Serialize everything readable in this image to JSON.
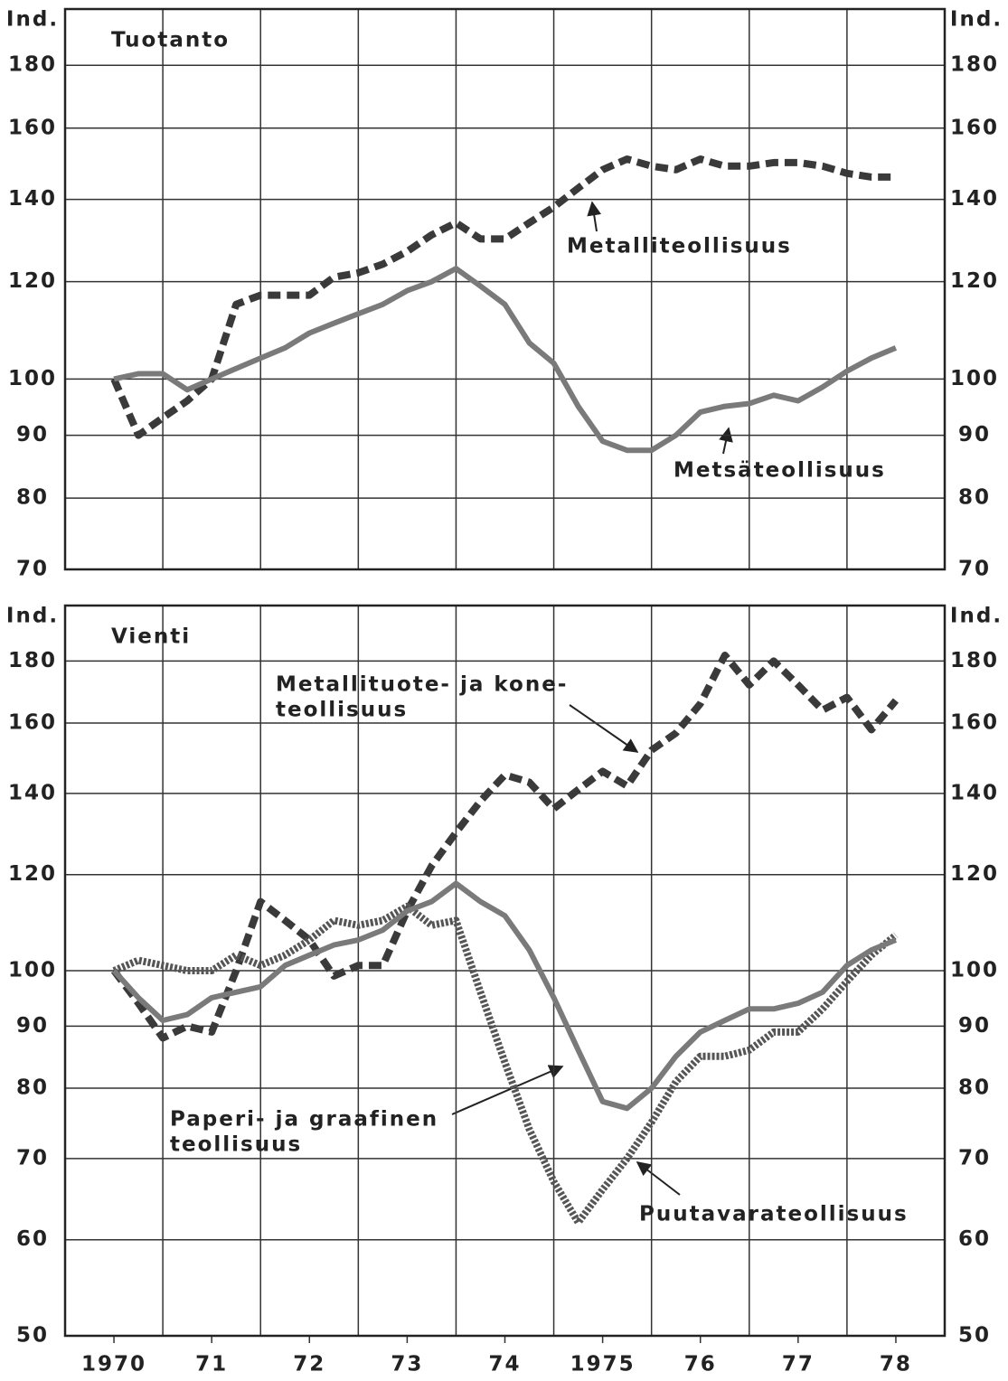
{
  "chart_data": [
    {
      "type": "line",
      "title": "Tuotanto",
      "y_label": "Ind.",
      "log_y": true,
      "xlim": [
        1969.5,
        1978.5
      ],
      "ylim": [
        70,
        200
      ],
      "xgrid": [
        1970.5,
        1971.5,
        1972.5,
        1973.5,
        1974.5,
        1975.5,
        1976.5,
        1977.5
      ],
      "yticks": [
        70,
        80,
        90,
        100,
        120,
        140,
        160,
        180
      ],
      "x": [
        1970,
        1970.25,
        1970.5,
        1970.75,
        1971,
        1971.25,
        1971.5,
        1971.75,
        1972,
        1972.25,
        1972.5,
        1972.75,
        1973,
        1973.25,
        1973.5,
        1973.75,
        1974,
        1974.25,
        1974.5,
        1974.75,
        1975,
        1975.25,
        1975.5,
        1975.75,
        1976,
        1976.25,
        1976.5,
        1976.75,
        1977,
        1977.25,
        1977.5,
        1977.75,
        1978
      ],
      "series": [
        {
          "label": [
            "Metalliteollisuus"
          ],
          "color": "#3a3a3a",
          "style": "dashed",
          "values": [
            100,
            90,
            93,
            96,
            100,
            115,
            117,
            117,
            117,
            121,
            122,
            124,
            127,
            131,
            134,
            130,
            130,
            134,
            138,
            143,
            148,
            151,
            149,
            148,
            151,
            149,
            149,
            150,
            150,
            149,
            147,
            146,
            146
          ]
        },
        {
          "label": [
            "Metsäteollisuus"
          ],
          "color": "#7a7a7a",
          "style": "solid",
          "values": [
            100,
            101,
            101,
            98,
            100,
            102,
            104,
            106,
            109,
            111,
            113,
            115,
            118,
            120,
            123,
            119,
            115,
            107,
            103,
            95,
            89,
            87.5,
            87.5,
            90,
            94,
            95,
            95.5,
            97,
            96,
            98.5,
            101.5,
            104,
            106
          ]
        }
      ]
    },
    {
      "type": "line",
      "title": "Vienti",
      "y_label": "Ind.",
      "log_y": true,
      "xlim": [
        1969.5,
        1978.5
      ],
      "ylim": [
        50,
        200
      ],
      "xgrid": [
        1970.5,
        1971.5,
        1972.5,
        1973.5,
        1974.5,
        1975.5,
        1976.5,
        1977.5
      ],
      "xticks": [
        {
          "value": 1970,
          "label": "1970"
        },
        {
          "value": 1971,
          "label": "71"
        },
        {
          "value": 1972,
          "label": "72"
        },
        {
          "value": 1973,
          "label": "73"
        },
        {
          "value": 1974,
          "label": "74"
        },
        {
          "value": 1975,
          "label": "1975"
        },
        {
          "value": 1976,
          "label": "76"
        },
        {
          "value": 1977,
          "label": "77"
        },
        {
          "value": 1978,
          "label": "78"
        }
      ],
      "yticks": [
        50,
        60,
        70,
        80,
        90,
        100,
        120,
        140,
        160,
        180
      ],
      "x": [
        1970,
        1970.25,
        1970.5,
        1970.75,
        1971,
        1971.25,
        1971.5,
        1971.75,
        1972,
        1972.25,
        1972.5,
        1972.75,
        1973,
        1973.25,
        1973.5,
        1973.75,
        1974,
        1974.25,
        1974.5,
        1974.75,
        1975,
        1975.25,
        1975.5,
        1975.75,
        1976,
        1976.25,
        1976.5,
        1976.75,
        1977,
        1977.25,
        1977.5,
        1977.75,
        1978
      ],
      "series": [
        {
          "label": [
            "Metallituote- ja kone-",
            "teollisuus"
          ],
          "color": "#3a3a3a",
          "style": "dashed",
          "values": [
            100,
            94,
            88,
            90,
            89,
            100,
            114,
            110,
            106,
            99,
            101,
            101,
            112,
            122,
            130,
            138,
            145,
            143,
            136,
            141,
            146,
            142,
            152,
            157,
            166,
            182,
            172,
            180,
            172,
            164,
            168,
            158,
            167
          ]
        },
        {
          "label": [
            "Puutavarateollisuus"
          ],
          "color": "#555555",
          "style": "dotted",
          "values": [
            100,
            102,
            101,
            100,
            100,
            103,
            101,
            103,
            106,
            110,
            109,
            110,
            113,
            109,
            110,
            96,
            84,
            74,
            67,
            62,
            66,
            70,
            75,
            81,
            85,
            85,
            86,
            89,
            89,
            93,
            98,
            103,
            107
          ]
        },
        {
          "label": [
            "Paperi- ja graafinen",
            "teollisuus"
          ],
          "color": "#7a7a7a",
          "style": "solid",
          "values": [
            100,
            95,
            91,
            92,
            95,
            96,
            97,
            101,
            103,
            105,
            106,
            108,
            112,
            114,
            118,
            114,
            111,
            104,
            95,
            86,
            78,
            77,
            80,
            85,
            89,
            91,
            93,
            93,
            94,
            96,
            101,
            104,
            106
          ]
        }
      ]
    }
  ]
}
